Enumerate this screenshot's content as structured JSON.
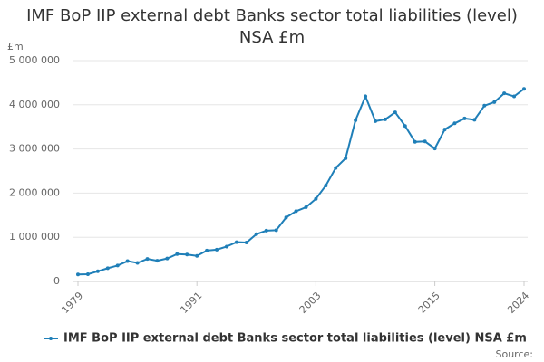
{
  "chart_data": {
    "type": "line",
    "title": "IMF BoP IIP external debt Banks sector total liabilities (level) NSA £m",
    "y_label": "£m",
    "source": "Source:",
    "x": [
      1979,
      1980,
      1981,
      1982,
      1983,
      1984,
      1985,
      1986,
      1987,
      1988,
      1989,
      1990,
      1991,
      1992,
      1993,
      1994,
      1995,
      1996,
      1997,
      1998,
      1999,
      2000,
      2001,
      2002,
      2003,
      2004,
      2005,
      2006,
      2007,
      2008,
      2009,
      2010,
      2011,
      2012,
      2013,
      2014,
      2015,
      2016,
      2017,
      2018,
      2019,
      2020,
      2021,
      2022,
      2023,
      2024
    ],
    "series": [
      {
        "name": "IMF BoP IIP external debt Banks sector total liabilities (level) NSA £m",
        "color": "#1f7fb8",
        "values": [
          160000,
          165000,
          230000,
          300000,
          360000,
          460000,
          420000,
          510000,
          470000,
          520000,
          620000,
          610000,
          580000,
          700000,
          720000,
          790000,
          890000,
          880000,
          1070000,
          1150000,
          1160000,
          1450000,
          1590000,
          1680000,
          1870000,
          2170000,
          2570000,
          2790000,
          3650000,
          4190000,
          3630000,
          3670000,
          3830000,
          3520000,
          3160000,
          3170000,
          3010000,
          3440000,
          3580000,
          3690000,
          3660000,
          3980000,
          4060000,
          4260000,
          4190000,
          4360000
        ]
      }
    ],
    "xlim": [
      1979,
      2024
    ],
    "xticks": [
      1979,
      1991,
      2003,
      2015,
      2024
    ],
    "ylim": [
      0,
      5000000
    ],
    "yticks": [
      0,
      {
        "value": 1000000,
        "label": "1 000 000"
      },
      {
        "value": 2000000,
        "label": "2 000 000"
      },
      {
        "value": 3000000,
        "label": "3 000 000"
      },
      {
        "value": 4000000,
        "label": "4 000 000"
      },
      {
        "value": 5000000,
        "label": "5 000 000"
      }
    ],
    "grid": true
  }
}
